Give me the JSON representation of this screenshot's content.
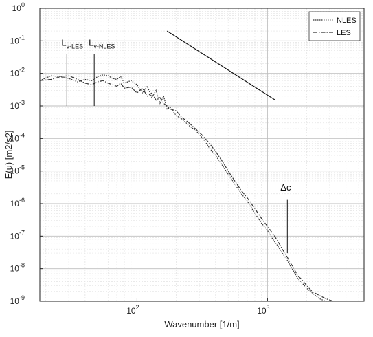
{
  "chart_data": {
    "type": "line",
    "xlabel": "Wavenumber [1/m]",
    "ylabel": "E(u) [m2/s2]",
    "x_scale": "log",
    "y_scale": "log",
    "xlim": [
      18,
      5500
    ],
    "ylim": [
      1e-09,
      1
    ],
    "grid": true,
    "legend_position": "top-right",
    "x_ticks": [
      {
        "value": 100,
        "base": "10",
        "exp": "2"
      },
      {
        "value": 1000,
        "base": "10",
        "exp": "3"
      }
    ],
    "y_ticks": [
      {
        "value": 1,
        "base": "10",
        "exp": "0"
      },
      {
        "value": 0.1,
        "base": "10",
        "exp": "-1"
      },
      {
        "value": 0.01,
        "base": "10",
        "exp": "-2"
      },
      {
        "value": 0.001,
        "base": "10",
        "exp": "-3"
      },
      {
        "value": 0.0001,
        "base": "10",
        "exp": "-4"
      },
      {
        "value": 1e-05,
        "base": "10",
        "exp": "-5"
      },
      {
        "value": 1e-06,
        "base": "10",
        "exp": "-6"
      },
      {
        "value": 1e-07,
        "base": "10",
        "exp": "-7"
      },
      {
        "value": 1e-08,
        "base": "10",
        "exp": "-8"
      },
      {
        "value": 1e-09,
        "base": "10",
        "exp": "-9"
      }
    ],
    "series": [
      {
        "name": "NLES",
        "style": "dotted",
        "color": "#333333",
        "x": [
          18,
          22,
          26,
          30,
          35,
          40,
          45,
          50,
          55,
          60,
          65,
          70,
          75,
          80,
          90,
          100,
          110,
          120,
          130,
          140,
          150,
          160,
          170,
          180,
          200,
          220,
          250,
          280,
          320,
          360,
          400,
          450,
          500,
          560,
          630,
          700,
          800,
          900,
          1000,
          1100,
          1200,
          1300,
          1400,
          1500,
          1600,
          1700,
          1800,
          2000,
          2200,
          2500,
          2800,
          3200
        ],
        "y": [
          0.006,
          0.0085,
          0.0078,
          0.007,
          0.0055,
          0.0065,
          0.006,
          0.008,
          0.009,
          0.0085,
          0.007,
          0.0065,
          0.008,
          0.005,
          0.006,
          0.0045,
          0.0025,
          0.004,
          0.0018,
          0.003,
          0.0012,
          0.002,
          0.0008,
          0.0009,
          0.0005,
          0.0004,
          0.00025,
          0.00018,
          0.0001,
          5e-05,
          3e-05,
          1.5e-05,
          8e-06,
          4e-06,
          2e-06,
          1.2e-06,
          5e-07,
          2.5e-07,
          1.5e-07,
          8e-08,
          5e-08,
          3e-08,
          2e-08,
          1.2e-08,
          8e-09,
          5e-09,
          4e-09,
          2.5e-09,
          1.8e-09,
          1.2e-09,
          1e-09,
          1e-09
        ]
      },
      {
        "name": "LES",
        "style": "dashdot",
        "color": "#333333",
        "x": [
          18,
          22,
          26,
          30,
          35,
          40,
          45,
          50,
          55,
          60,
          65,
          70,
          75,
          80,
          90,
          100,
          110,
          120,
          130,
          140,
          150,
          160,
          170,
          180,
          200,
          220,
          250,
          280,
          320,
          360,
          400,
          450,
          500,
          560,
          630,
          700,
          800,
          900,
          1000,
          1100,
          1200,
          1300,
          1400,
          1500,
          1600,
          1700,
          1800,
          2000,
          2200,
          2500,
          2800,
          3200
        ],
        "y": [
          0.006,
          0.0065,
          0.008,
          0.0085,
          0.0065,
          0.005,
          0.0045,
          0.0055,
          0.006,
          0.005,
          0.0045,
          0.004,
          0.005,
          0.0035,
          0.0038,
          0.0025,
          0.0035,
          0.002,
          0.0025,
          0.0015,
          0.0018,
          0.0012,
          0.001,
          0.0008,
          0.0007,
          0.00045,
          0.0003,
          0.0002,
          0.00012,
          7e-05,
          4e-05,
          2e-05,
          1e-05,
          5e-06,
          2.5e-06,
          1.5e-06,
          7e-07,
          3.5e-07,
          2e-07,
          1.2e-07,
          7e-08,
          4e-08,
          2.5e-08,
          1.5e-08,
          1e-08,
          6e-09,
          5e-09,
          3e-09,
          2e-09,
          1.5e-09,
          1.2e-09,
          1e-09
        ]
      }
    ],
    "reference_line": {
      "x": [
        170,
        1150
      ],
      "y": [
        0.2,
        0.0015
      ]
    },
    "annotations": [
      {
        "main": "L",
        "sub": "v-LES",
        "x": 29
      },
      {
        "main": "L",
        "sub": "v-NLES",
        "x": 47
      },
      {
        "main": "Δc",
        "sub": "",
        "x": 1420
      }
    ],
    "vertical_markers": [
      {
        "x": 29,
        "y_top": 0.04,
        "y_bottom": 0.001
      },
      {
        "x": 47,
        "y_top": 0.04,
        "y_bottom": 0.001
      },
      {
        "x": 1420,
        "y_top": 1.3e-06,
        "y_bottom": 3e-08
      }
    ]
  }
}
